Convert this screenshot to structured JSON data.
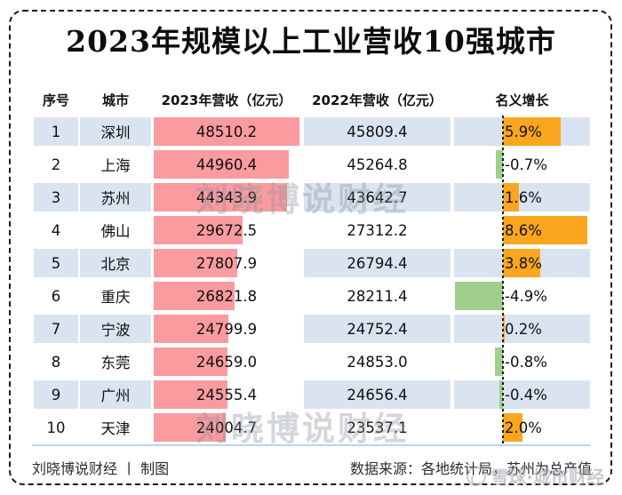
{
  "title": "2023年规模以上工业营收10强城市",
  "table": {
    "headers": [
      "序号",
      "城市",
      "2023年营收（亿元）",
      "2022年营收（亿元）",
      "名义增长"
    ],
    "rows": [
      {
        "rank": "1",
        "city": "深圳",
        "rev2023": "48510.2",
        "rev2022": "45809.4",
        "growth_label": "5.9%",
        "rev2023_num": 48510.2,
        "growth_num": 5.9
      },
      {
        "rank": "2",
        "city": "上海",
        "rev2023": "44960.4",
        "rev2022": "45264.8",
        "growth_label": "-0.7%",
        "rev2023_num": 44960.4,
        "growth_num": -0.7
      },
      {
        "rank": "3",
        "city": "苏州",
        "rev2023": "44343.9",
        "rev2022": "43642.7",
        "growth_label": "1.6%",
        "rev2023_num": 44343.9,
        "growth_num": 1.6
      },
      {
        "rank": "4",
        "city": "佛山",
        "rev2023": "29672.5",
        "rev2022": "27312.2",
        "growth_label": "8.6%",
        "rev2023_num": 29672.5,
        "growth_num": 8.6
      },
      {
        "rank": "5",
        "city": "北京",
        "rev2023": "27807.9",
        "rev2022": "26794.4",
        "growth_label": "3.8%",
        "rev2023_num": 27807.9,
        "growth_num": 3.8
      },
      {
        "rank": "6",
        "city": "重庆",
        "rev2023": "26821.8",
        "rev2022": "28211.4",
        "growth_label": "-4.9%",
        "rev2023_num": 26821.8,
        "growth_num": -4.9
      },
      {
        "rank": "7",
        "city": "宁波",
        "rev2023": "24799.9",
        "rev2022": "24752.4",
        "growth_label": "0.2%",
        "rev2023_num": 24799.9,
        "growth_num": 0.2
      },
      {
        "rank": "8",
        "city": "东莞",
        "rev2023": "24659.0",
        "rev2022": "24853.0",
        "growth_label": "-0.8%",
        "rev2023_num": 24659.0,
        "growth_num": -0.8
      },
      {
        "rank": "9",
        "city": "广州",
        "rev2023": "24555.4",
        "rev2022": "24656.4",
        "growth_label": "-0.4%",
        "rev2023_num": 24555.4,
        "growth_num": -0.4
      },
      {
        "rank": "10",
        "city": "天津",
        "rev2023": "24004.7",
        "rev2022": "23537.1",
        "growth_label": "2.0%",
        "rev2023_num": 24004.7,
        "growth_num": 2.0
      }
    ]
  },
  "footer": {
    "left": "刘晓博说财经 丨 制图",
    "right": "数据来源：各地统计局，苏州为总产值"
  },
  "watermark": {
    "center": "刘晓博说财经",
    "bottom_right": "雪球·城市财经"
  },
  "colors": {
    "bar_pink": "#F99B9F",
    "bar_orange": "#FAA61E",
    "bar_green": "#A0CF8D",
    "row_alt_blue": "#DAE4F0",
    "border": "#1C1C1C"
  },
  "chart_data": {
    "type": "table",
    "title": "2023年规模以上工业营收10强城市",
    "columns": [
      "序号",
      "城市",
      "2023年营收（亿元）",
      "2022年营收（亿元）",
      "名义增长"
    ],
    "categories": [
      "深圳",
      "上海",
      "苏州",
      "佛山",
      "北京",
      "重庆",
      "宁波",
      "东莞",
      "广州",
      "天津"
    ],
    "series": [
      {
        "name": "2023年营收（亿元）",
        "type": "bar",
        "values": [
          48510.2,
          44960.4,
          44343.9,
          29672.5,
          27807.9,
          26821.8,
          24799.9,
          24659.0,
          24555.4,
          24004.7
        ]
      },
      {
        "name": "2022年营收（亿元）",
        "type": "text",
        "values": [
          45809.4,
          45264.8,
          43642.7,
          27312.2,
          26794.4,
          28211.4,
          24752.4,
          24853.0,
          24656.4,
          23537.1
        ]
      },
      {
        "name": "名义增长(%)",
        "type": "bar-diverging",
        "values": [
          5.9,
          -0.7,
          1.6,
          8.6,
          3.8,
          -4.9,
          0.2,
          -0.8,
          -0.4,
          2.0
        ]
      }
    ],
    "layout": {
      "positive_color": "#FAA61E",
      "negative_color": "#A0CF8D",
      "revenue_bar_color": "#F99B9F",
      "zero_axis": "dotted-vertical-line"
    }
  }
}
